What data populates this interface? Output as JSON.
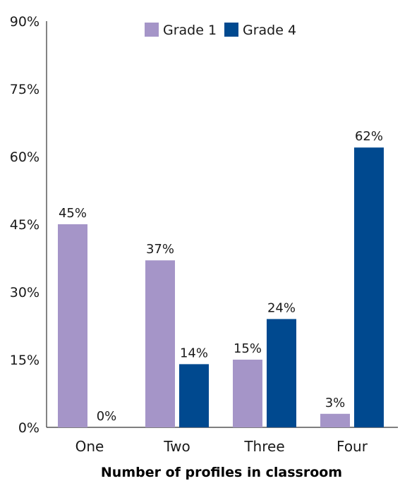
{
  "chart_data": {
    "type": "bar",
    "categories": [
      "One",
      "Two",
      "Three",
      "Four"
    ],
    "series": [
      {
        "name": "Grade 1",
        "values": [
          45,
          37,
          15,
          3
        ],
        "labels": [
          "45%",
          "37%",
          "15%",
          "3%"
        ],
        "color": "#a595c8"
      },
      {
        "name": "Grade 4",
        "values": [
          0,
          14,
          24,
          62
        ],
        "labels": [
          "0%",
          "14%",
          "24%",
          "62%"
        ],
        "color": "#00498f"
      }
    ],
    "y_ticks": [
      {
        "value": 0,
        "label": "0%"
      },
      {
        "value": 15,
        "label": "15%"
      },
      {
        "value": 30,
        "label": "30%"
      },
      {
        "value": 45,
        "label": "45%"
      },
      {
        "value": 60,
        "label": "60%"
      },
      {
        "value": 75,
        "label": "75%"
      },
      {
        "value": 90,
        "label": "90%"
      }
    ],
    "xlabel": "Number of profiles in classroom",
    "ylim": [
      0,
      90
    ],
    "legend_position": "top-center",
    "grid": false
  }
}
